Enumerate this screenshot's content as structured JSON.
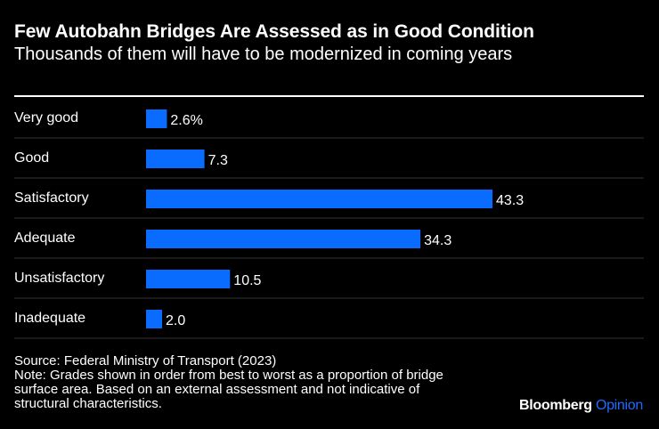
{
  "header": {
    "title": "Few Autobahn Bridges Are Assessed as in Good Condition",
    "subtitle": "Thousands of them will have to be modernized in coming years"
  },
  "colors": {
    "bar": "#0a6cff",
    "background": "#000000",
    "gridline": "#333333",
    "text": "#ffffff"
  },
  "chart_data": {
    "type": "bar",
    "orientation": "horizontal",
    "title": "Few Autobahn Bridges Are Assessed as in Good Condition",
    "subtitle": "Thousands of them will have to be modernized in coming years",
    "unit": "%",
    "categories": [
      "Very good",
      "Good",
      "Satisfactory",
      "Adequate",
      "Unsatisfactory",
      "Inadequate"
    ],
    "values": [
      2.6,
      7.3,
      43.3,
      34.3,
      10.5,
      2.0
    ],
    "value_labels": [
      "2.6%",
      "7.3",
      "43.3",
      "34.3",
      "10.5",
      "2.0"
    ],
    "xlim": [
      0,
      43.3
    ],
    "xlabel": "",
    "ylabel": ""
  },
  "footer": {
    "source": "Source: Federal Ministry of Transport (2023)",
    "note_lines": [
      "Note: Grades shown in order from best to worst as a proportion of bridge",
      "surface area. Based on an external assessment and not indicative of",
      "structural characteristics."
    ],
    "brand_primary": "Bloomberg",
    "brand_secondary": "Opinion"
  }
}
